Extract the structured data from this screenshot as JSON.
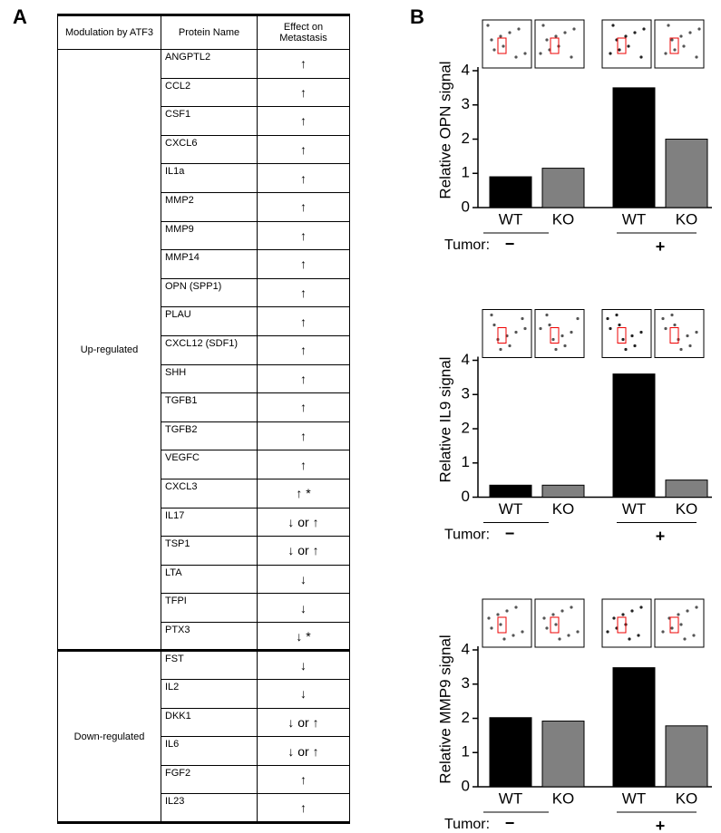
{
  "panel_labels": [
    "A",
    "B"
  ],
  "table": {
    "headers": [
      "Modulation by ATF3",
      "Protein Name",
      "Effect on Metastasis"
    ],
    "groups": [
      {
        "label": "Up-regulated",
        "rows": [
          [
            "ANGPTL2",
            "↑"
          ],
          [
            "CCL2",
            "↑"
          ],
          [
            "CSF1",
            "↑"
          ],
          [
            "CXCL6",
            "↑"
          ],
          [
            "IL1a",
            "↑"
          ],
          [
            "MMP2",
            "↑"
          ],
          [
            "MMP9",
            "↑"
          ],
          [
            "MMP14",
            "↑"
          ],
          [
            "OPN (SPP1)",
            "↑"
          ],
          [
            "PLAU",
            "↑"
          ],
          [
            "CXCL12 (SDF1)",
            "↑"
          ],
          [
            "SHH",
            "↑"
          ],
          [
            "TGFB1",
            "↑"
          ],
          [
            "TGFB2",
            "↑"
          ],
          [
            "VEGFC",
            "↑"
          ],
          [
            "CXCL3",
            "↑ *"
          ],
          [
            "IL17",
            "↓ or ↑"
          ],
          [
            "TSP1",
            "↓ or ↑"
          ],
          [
            "LTA",
            "↓"
          ],
          [
            "TFPI",
            "↓"
          ],
          [
            "PTX3",
            "↓ *"
          ]
        ]
      },
      {
        "label": "Down-regulated",
        "rows": [
          [
            "FST",
            "↓"
          ],
          [
            "IL2",
            "↓"
          ],
          [
            "DKK1",
            "↓ or ↑"
          ],
          [
            "IL6",
            "↓ or ↑"
          ],
          [
            "FGF2",
            "↑"
          ],
          [
            "IL23",
            "↑"
          ]
        ]
      }
    ]
  },
  "chart_data": [
    {
      "type": "bar",
      "y_label": "Relative  OPN signal",
      "categories": [
        "WT",
        "KO",
        "WT",
        "KO"
      ],
      "values": [
        0.9,
        1.15,
        3.5,
        2.0
      ],
      "colors": [
        "#000000",
        "#808080",
        "#000000",
        "#808080"
      ],
      "ylim": [
        0,
        4
      ],
      "yticks": [
        0,
        1,
        2,
        3,
        4
      ],
      "group_title": "Tumor:",
      "groups": [
        "−",
        "+"
      ]
    },
    {
      "type": "bar",
      "y_label": "Relative IL9 signal",
      "categories": [
        "WT",
        "KO",
        "WT",
        "KO"
      ],
      "values": [
        0.35,
        0.35,
        3.6,
        0.5
      ],
      "colors": [
        "#000000",
        "#808080",
        "#000000",
        "#808080"
      ],
      "ylim": [
        0,
        4
      ],
      "yticks": [
        0,
        1,
        2,
        3,
        4
      ],
      "group_title": "Tumor:",
      "groups": [
        "−",
        "+"
      ]
    },
    {
      "type": "bar",
      "y_label": "Relative MMP9 signal",
      "categories": [
        "WT",
        "KO",
        "WT",
        "KO"
      ],
      "values": [
        2.02,
        1.92,
        3.48,
        1.78
      ],
      "colors": [
        "#000000",
        "#808080",
        "#000000",
        "#808080"
      ],
      "ylim": [
        0,
        4
      ],
      "yticks": [
        0,
        1,
        2,
        3,
        4
      ],
      "group_title": "Tumor:",
      "groups": [
        "−",
        "+"
      ]
    }
  ]
}
